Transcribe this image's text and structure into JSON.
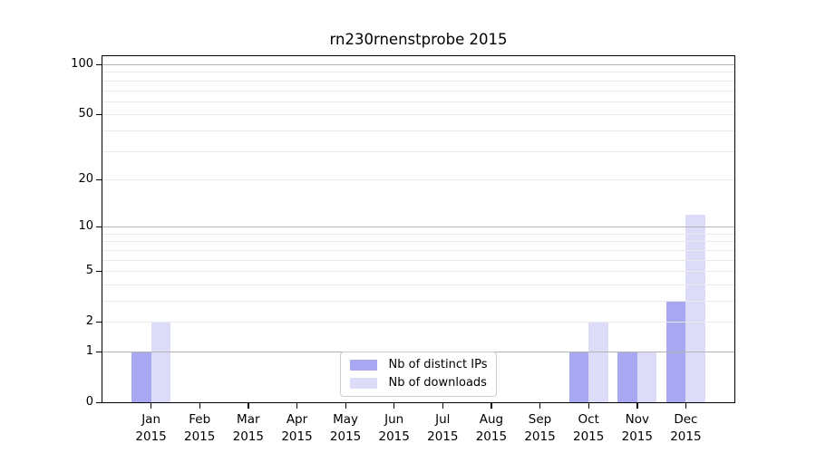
{
  "chart_data": {
    "type": "bar",
    "title": "rn230rnenstprobe 2015",
    "categories": [
      "Jan 2015",
      "Feb 2015",
      "Mar 2015",
      "Apr 2015",
      "May 2015",
      "Jun 2015",
      "Jul 2015",
      "Aug 2015",
      "Sep 2015",
      "Oct 2015",
      "Nov 2015",
      "Dec 2015"
    ],
    "series": [
      {
        "name": "Nb of distinct IPs",
        "color": "#a7a7f2",
        "values": [
          1,
          0,
          0,
          0,
          0,
          0,
          0,
          0,
          0,
          1,
          1,
          3
        ]
      },
      {
        "name": "Nb of downloads",
        "color": "#dcdcf8",
        "values": [
          2,
          0,
          0,
          0,
          0,
          0,
          0,
          0,
          0,
          2,
          1,
          12
        ]
      }
    ],
    "yscale": "log1p",
    "ylim": [
      0,
      100
    ],
    "yticks": [
      0,
      1,
      2,
      5,
      10,
      20,
      50,
      100
    ],
    "yticks_minor": [
      3,
      4,
      6,
      7,
      8,
      9,
      30,
      40,
      60,
      70,
      80,
      90
    ],
    "grid": true,
    "legend_position": "lower center inside",
    "colors": {
      "grid_decade": "#b3b3b3",
      "grid_minor": "#e9e9e9",
      "spine": "#000000",
      "text": "#000000",
      "background": "#ffffff"
    }
  }
}
